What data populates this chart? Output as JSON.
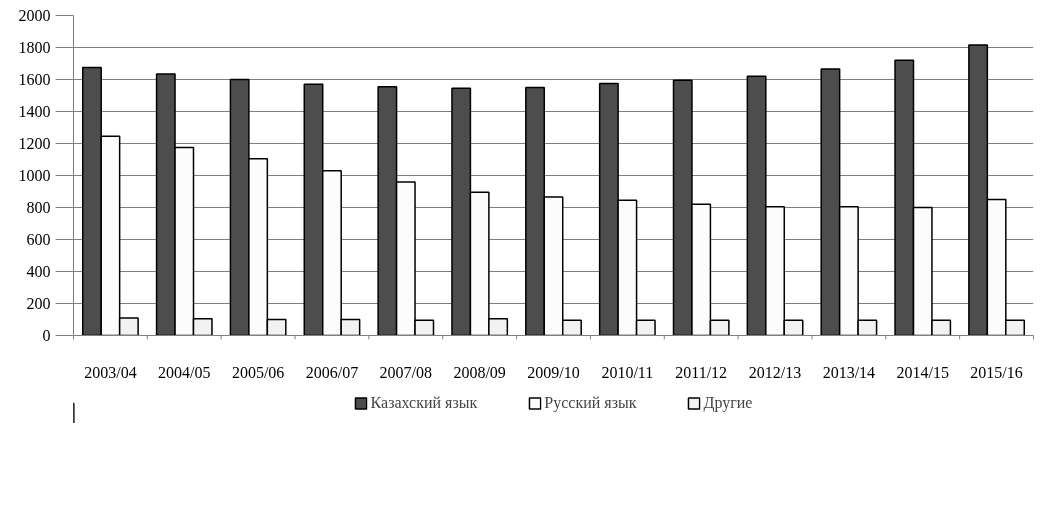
{
  "chart_data": {
    "type": "bar",
    "categories": [
      "2003/04",
      "2004/05",
      "2005/06",
      "2006/07",
      "2007/08",
      "2008/09",
      "2009/10",
      "2010/11",
      "2011/12",
      "2012/13",
      "2013/14",
      "2014/15",
      "2015/16"
    ],
    "series": [
      {
        "name": "Казахский язык",
        "color": "#4d4d4d",
        "values": [
          1675,
          1635,
          1600,
          1570,
          1555,
          1545,
          1550,
          1575,
          1595,
          1620,
          1665,
          1720,
          1815
        ]
      },
      {
        "name": "Русский язык",
        "color": "#fcfcfc",
        "values": [
          1245,
          1175,
          1105,
          1030,
          960,
          895,
          865,
          845,
          820,
          805,
          805,
          800,
          850
        ]
      },
      {
        "name": "Другие",
        "color": "#f2f2f2",
        "values": [
          110,
          105,
          100,
          100,
          95,
          105,
          95,
          95,
          95,
          95,
          95,
          95,
          95
        ]
      }
    ],
    "ylim": [
      0,
      2000
    ],
    "yticks": [
      0,
      200,
      400,
      600,
      800,
      1000,
      1200,
      1400,
      1600,
      1800,
      2000
    ],
    "grid": "y",
    "legend": "bottom"
  }
}
